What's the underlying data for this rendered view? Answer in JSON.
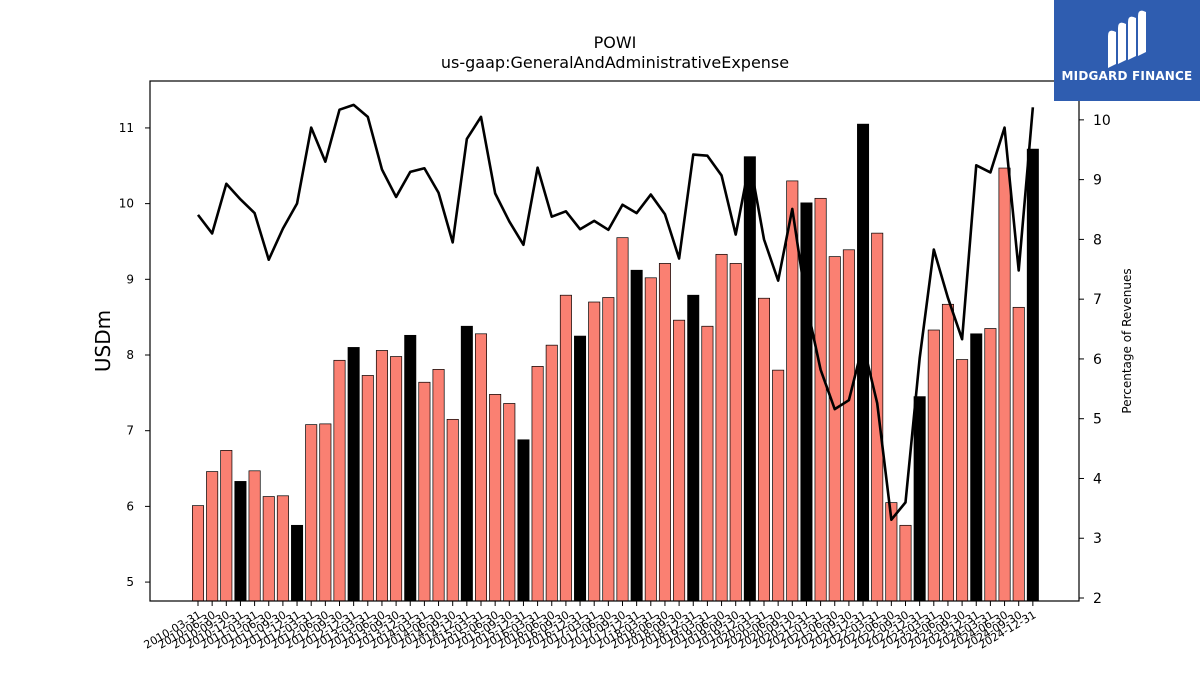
{
  "chart_data": {
    "type": "bar+line",
    "title": "POWI",
    "subtitle": "us-gaap:GeneralAndAdministrativeExpense",
    "ylabel_left": "USDm",
    "ylabel_right": "Percentage of Revenues",
    "ylim_left": [
      4.75,
      11.62
    ],
    "ylim_right": [
      1.95,
      10.65
    ],
    "yticks_left": [
      5,
      6,
      7,
      8,
      9,
      10,
      11
    ],
    "yticks_right": [
      2,
      3,
      4,
      5,
      6,
      7,
      8,
      9,
      10
    ],
    "categories": [
      "2010-03-31",
      "2010-06-30",
      "2010-09-30",
      "2010-12-31",
      "2011-03-31",
      "2011-06-30",
      "2011-09-30",
      "2011-12-31",
      "2012-03-31",
      "2012-06-30",
      "2012-09-30",
      "2012-12-31",
      "2013-03-31",
      "2013-06-30",
      "2013-09-30",
      "2013-12-31",
      "2014-03-31",
      "2014-06-30",
      "2014-09-30",
      "2014-12-31",
      "2015-03-31",
      "2015-06-30",
      "2015-09-30",
      "2015-12-31",
      "2016-03-31",
      "2016-06-30",
      "2016-09-30",
      "2016-12-31",
      "2017-03-31",
      "2017-06-30",
      "2017-09-30",
      "2017-12-31",
      "2018-03-31",
      "2018-06-30",
      "2018-09-30",
      "2018-12-31",
      "2019-03-31",
      "2019-06-30",
      "2019-09-30",
      "2019-12-31",
      "2020-03-31",
      "2020-06-30",
      "2020-09-30",
      "2020-12-31",
      "2021-03-31",
      "2021-06-30",
      "2021-09-30",
      "2021-12-31",
      "2022-03-31",
      "2022-06-30",
      "2022-09-30",
      "2022-12-31",
      "2023-03-31",
      "2023-06-30",
      "2023-09-30",
      "2023-12-31",
      "2024-03-31",
      "2024-06-30",
      "2024-09-30",
      "2024-12-31"
    ],
    "series": [
      {
        "name": "",
        "type": "bar",
        "axis": "left",
        "values": [
          6.01,
          6.46,
          6.74,
          6.33,
          6.47,
          6.13,
          6.14,
          5.75,
          7.08,
          7.09,
          7.93,
          8.1,
          7.73,
          8.06,
          7.98,
          8.26,
          7.64,
          7.81,
          7.15,
          8.38,
          8.28,
          7.48,
          7.36,
          6.88,
          7.85,
          8.13,
          8.79,
          8.25,
          8.7,
          8.76,
          9.55,
          9.12,
          9.02,
          9.21,
          8.46,
          8.79,
          8.38,
          9.33,
          9.21,
          10.62,
          8.75,
          7.8,
          10.3,
          10.01,
          10.07,
          9.3,
          9.39,
          11.05,
          9.61,
          6.05,
          5.75,
          7.45,
          8.33,
          8.67,
          7.94,
          8.28,
          8.35,
          10.47,
          8.63,
          10.72
        ],
        "colors": [
          "#fa8072",
          "#fa8072",
          "#fa8072",
          "#000000",
          "#fa8072",
          "#fa8072",
          "#fa8072",
          "#000000",
          "#fa8072",
          "#fa8072",
          "#fa8072",
          "#000000",
          "#fa8072",
          "#fa8072",
          "#fa8072",
          "#000000",
          "#fa8072",
          "#fa8072",
          "#fa8072",
          "#000000",
          "#fa8072",
          "#fa8072",
          "#fa8072",
          "#000000",
          "#fa8072",
          "#fa8072",
          "#fa8072",
          "#000000",
          "#fa8072",
          "#fa8072",
          "#fa8072",
          "#000000",
          "#fa8072",
          "#fa8072",
          "#fa8072",
          "#000000",
          "#fa8072",
          "#fa8072",
          "#fa8072",
          "#000000",
          "#fa8072",
          "#fa8072",
          "#fa8072",
          "#000000",
          "#fa8072",
          "#fa8072",
          "#fa8072",
          "#000000",
          "#fa8072",
          "#fa8072",
          "#fa8072",
          "#000000",
          "#fa8072",
          "#fa8072",
          "#fa8072",
          "#000000",
          "#fa8072",
          "#fa8072",
          "#fa8072",
          "#000000"
        ]
      },
      {
        "name": "",
        "type": "line",
        "axis": "right",
        "color": "#000000",
        "values": [
          8.41,
          8.1,
          8.93,
          8.67,
          8.44,
          7.66,
          8.18,
          8.6,
          9.87,
          9.3,
          10.17,
          10.25,
          10.05,
          9.17,
          8.71,
          9.13,
          9.19,
          8.78,
          7.95,
          9.68,
          10.05,
          8.77,
          8.3,
          7.91,
          9.2,
          8.38,
          8.47,
          8.17,
          8.31,
          8.16,
          8.58,
          8.44,
          8.75,
          8.42,
          7.68,
          9.42,
          9.4,
          9.07,
          8.08,
          9.31,
          8.0,
          7.31,
          8.51,
          6.92,
          5.82,
          5.16,
          5.31,
          6.25,
          5.26,
          3.31,
          3.6,
          6.01,
          7.83,
          7.02,
          6.33,
          9.24,
          9.12,
          9.87,
          7.48,
          10.21
        ]
      }
    ],
    "grid": false,
    "legend": "none"
  },
  "brand": {
    "name": "MIDGARD FINANCE",
    "logo_color": "#2f5db0"
  },
  "colors": {
    "quarter_bar": "#fa8072",
    "year_end_bar": "#000000",
    "line": "#000000"
  }
}
